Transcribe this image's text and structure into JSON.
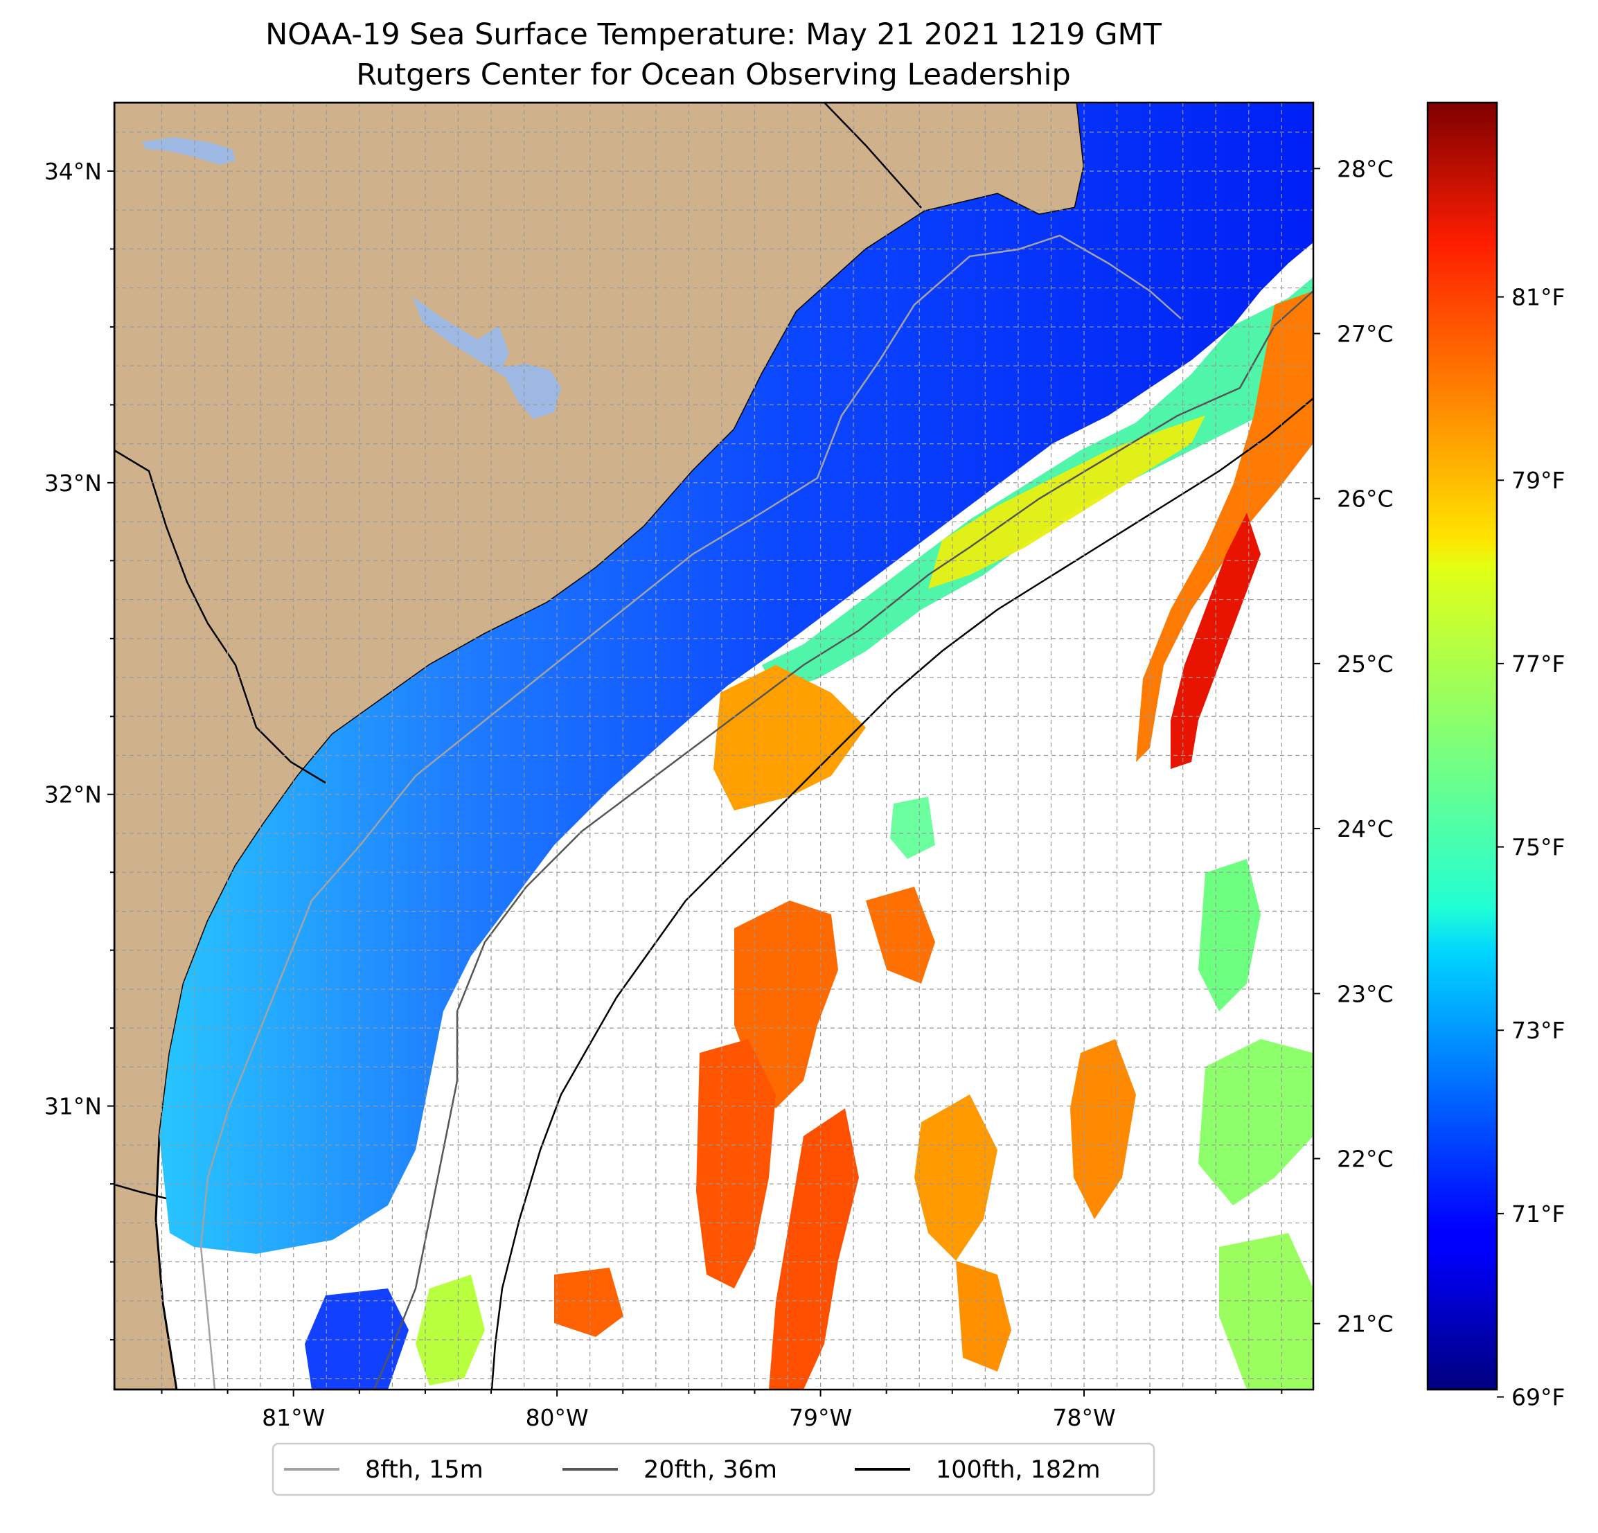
{
  "title": "NOAA-19 Sea Surface Temperature: May 21 2021 1219 GMT",
  "subtitle": "Rutgers Center for Ocean Observing Leadership",
  "map": {
    "lon_range": [
      -81.68,
      -77.13
    ],
    "lat_range": [
      30.09,
      34.22
    ],
    "lat_ticks": [
      {
        "value": 34,
        "label": "34°N"
      },
      {
        "value": 33,
        "label": "33°N"
      },
      {
        "value": 32,
        "label": "32°N"
      },
      {
        "value": 31,
        "label": "31°N"
      }
    ],
    "lon_ticks": [
      {
        "value": -81,
        "label": "81°W"
      },
      {
        "value": -80,
        "label": "80°W"
      },
      {
        "value": -79,
        "label": "79°W"
      },
      {
        "value": -78,
        "label": "78°W"
      }
    ],
    "grid": true,
    "colors": {
      "land": "#cfb28b",
      "lake": "#9db9e3",
      "grid": "#999999",
      "background": "#ffffff"
    }
  },
  "colorbar": {
    "cmap": "jet",
    "range_c": [
      20.6,
      28.4
    ],
    "celsius_ticks": [
      {
        "value": 28,
        "label": "28°C"
      },
      {
        "value": 27,
        "label": "27°C"
      },
      {
        "value": 26,
        "label": "26°C"
      },
      {
        "value": 25,
        "label": "25°C"
      },
      {
        "value": 24,
        "label": "24°C"
      },
      {
        "value": 23,
        "label": "23°C"
      },
      {
        "value": 22,
        "label": "22°C"
      },
      {
        "value": 21,
        "label": "21°C"
      }
    ],
    "fahrenheit_ticks": [
      {
        "value": 81,
        "label": "81°F"
      },
      {
        "value": 79,
        "label": "79°F"
      },
      {
        "value": 77,
        "label": "77°F"
      },
      {
        "value": 75,
        "label": "75°F"
      },
      {
        "value": 73,
        "label": "73°F"
      },
      {
        "value": 71,
        "label": "71°F"
      },
      {
        "value": 69,
        "label": "69°F"
      }
    ]
  },
  "legend": {
    "placement": "bottom-center",
    "items": [
      {
        "label": "8fth, 15m",
        "color": "#a3a3a3"
      },
      {
        "label": "20fth, 36m",
        "color": "#555555"
      },
      {
        "label": "100fth, 182m",
        "color": "#000000"
      }
    ]
  }
}
